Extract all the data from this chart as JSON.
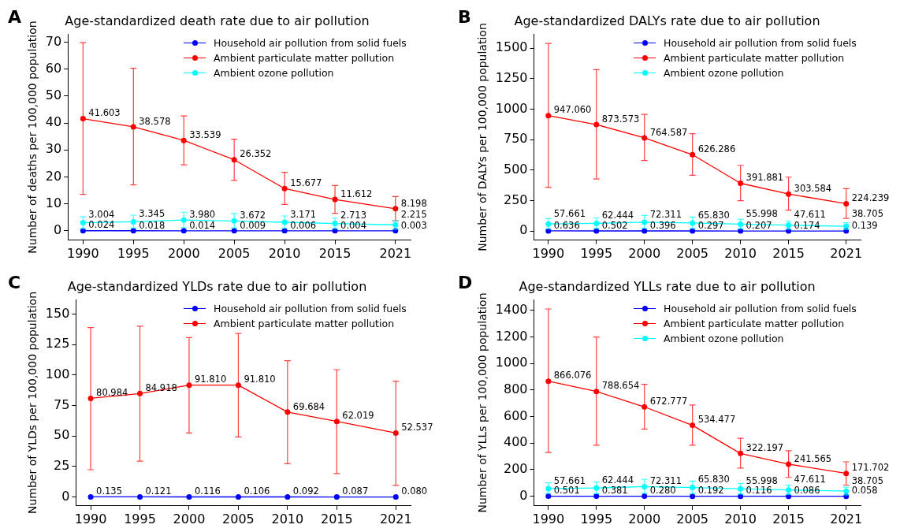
{
  "chart_data": [
    {
      "type": "line",
      "title": "Age-standardized death rate due to air pollution",
      "ylabel": "Number of deaths per 100,000 population",
      "annotations": [
        "A"
      ],
      "marker": "circle",
      "line_style": "solid",
      "grid": false,
      "legend": "top right",
      "xlim": [
        1988.5,
        2022.5
      ],
      "xticks": [
        1990,
        1995,
        2000,
        2005,
        2010,
        2015,
        2021
      ],
      "ylim": [
        -3.5,
        73
      ],
      "yticks": [
        0,
        10,
        20,
        30,
        40,
        50,
        60,
        70
      ],
      "series": [
        {
          "name": "Household air pollution from solid fuels",
          "color": "#0000ff",
          "x": [
            1990,
            1995,
            2000,
            2005,
            2010,
            2015,
            2021
          ],
          "values": [
            0.024,
            0.018,
            0.014,
            0.009,
            0.006,
            0.004,
            0.003
          ],
          "value_labels": [
            "0.024",
            "0.018",
            "0.014",
            "0.009",
            "0.006",
            "0.004",
            "0.003"
          ]
        },
        {
          "name": "Ambient particulate matter pollution",
          "color": "#ff0000",
          "x": [
            1990,
            1995,
            2000,
            2005,
            2010,
            2015,
            2021
          ],
          "values": [
            41.603,
            38.578,
            33.539,
            26.352,
            15.677,
            11.612,
            8.198
          ],
          "value_labels": [
            "41.603",
            "38.578",
            "33.539",
            "26.352",
            "15.677",
            "11.612",
            "8.198"
          ],
          "errors": [
            [
              13.5,
              69.8
            ],
            [
              17,
              60.3
            ],
            [
              24.5,
              42.6
            ],
            [
              18.7,
              34
            ],
            [
              9.8,
              21.7
            ],
            [
              6.5,
              16.8
            ],
            [
              3.7,
              12.7
            ]
          ]
        },
        {
          "name": "Ambient ozone pollution",
          "color": "#00ffff",
          "x": [
            1990,
            1995,
            2000,
            2005,
            2010,
            2015,
            2021
          ],
          "values": [
            3.004,
            3.345,
            3.98,
            3.672,
            3.171,
            2.713,
            2.215
          ],
          "value_labels": [
            "3.004",
            "3.345",
            "3.980",
            "3.672",
            "3.171",
            "2.713",
            "2.215"
          ],
          "errors": [
            [
              0.8,
              5.2
            ],
            [
              1,
              5.8
            ],
            [
              1.2,
              6.9
            ],
            [
              1.1,
              6.4
            ],
            [
              0.9,
              5.5
            ],
            [
              0.8,
              4.7
            ],
            [
              0.6,
              3.8
            ]
          ]
        }
      ]
    },
    {
      "type": "line",
      "title": "Age-standardized DALYs rate due to air pollution",
      "ylabel": "Number of DALYs per 100,000 population",
      "annotations": [
        "B"
      ],
      "marker": "circle",
      "line_style": "solid",
      "grid": false,
      "legend": "top right",
      "xlim": [
        1988.5,
        2022.5
      ],
      "xticks": [
        1990,
        1995,
        2000,
        2005,
        2010,
        2015,
        2021
      ],
      "ylim": [
        -76,
        1617
      ],
      "yticks": [
        0,
        250,
        500,
        750,
        1000,
        1250,
        1500
      ],
      "series": [
        {
          "name": "Household air pollution from solid fuels",
          "color": "#0000ff",
          "x": [
            1990,
            1995,
            2000,
            2005,
            2010,
            2015,
            2021
          ],
          "values": [
            0.636,
            0.502,
            0.396,
            0.297,
            0.207,
            0.174,
            0.139
          ],
          "value_labels": [
            "0.636",
            "0.502",
            "0.396",
            "0.297",
            "0.207",
            "0.174",
            "0.139"
          ]
        },
        {
          "name": "Ambient particulate matter pollution",
          "color": "#ff0000",
          "x": [
            1990,
            1995,
            2000,
            2005,
            2010,
            2015,
            2021
          ],
          "values": [
            947.06,
            873.573,
            764.587,
            626.286,
            391.881,
            303.584,
            224.239
          ],
          "value_labels": [
            "947.060",
            "873.573",
            "764.587",
            "626.286",
            "391.881",
            "303.584",
            "224.239"
          ],
          "errors": [
            [
              359,
              1540
            ],
            [
              427,
              1325
            ],
            [
              579,
              957
            ],
            [
              458,
              799
            ],
            [
              249,
              539
            ],
            [
              171,
              442
            ],
            [
              103,
              348
            ]
          ]
        },
        {
          "name": "Ambient ozone pollution",
          "color": "#00ffff",
          "x": [
            1990,
            1995,
            2000,
            2005,
            2010,
            2015,
            2021
          ],
          "values": [
            57.661,
            62.444,
            72.311,
            65.83,
            55.998,
            47.611,
            38.705
          ],
          "value_labels": [
            "57.661",
            "62.444",
            "72.311",
            "65.830",
            "55.998",
            "47.611",
            "38.705"
          ],
          "errors": [
            [
              18,
              101
            ],
            [
              20,
              107
            ],
            [
              22,
              127
            ],
            [
              20,
              115
            ],
            [
              17,
              97
            ],
            [
              14,
              83
            ],
            [
              11,
              68
            ]
          ]
        }
      ]
    },
    {
      "type": "line",
      "title": "Age-standardized YLDs rate due to air pollution",
      "ylabel": "Number of YLDs per 100,000 population",
      "annotations": [
        "C"
      ],
      "marker": "circle",
      "line_style": "solid",
      "grid": false,
      "legend": "top right",
      "xlim": [
        1988.5,
        2022.5
      ],
      "xticks": [
        1990,
        1995,
        2000,
        2005,
        2010,
        2015,
        2021
      ],
      "ylim": [
        -7.2,
        161.9
      ],
      "yticks": [
        0,
        25,
        50,
        75,
        100,
        125,
        150
      ],
      "series": [
        {
          "name": "Household air pollution from solid fuels",
          "color": "#0000ff",
          "x": [
            1990,
            1995,
            2000,
            2005,
            2010,
            2015,
            2021
          ],
          "values": [
            0.135,
            0.121,
            0.116,
            0.106,
            0.092,
            0.087,
            0.08
          ],
          "value_labels": [
            "0.135",
            "0.121",
            "0.116",
            "0.106",
            "0.092",
            "0.087",
            "0.080"
          ]
        },
        {
          "name": "Ambient particulate matter pollution",
          "color": "#ff0000",
          "x": [
            1990,
            1995,
            2000,
            2005,
            2010,
            2015,
            2021
          ],
          "values": [
            80.984,
            84.918,
            91.81,
            91.81,
            69.684,
            62.019,
            52.537
          ],
          "value_labels": [
            "80.984",
            "84.918",
            "91.810",
            "91.810",
            "69.684",
            "62.019",
            "52.537"
          ],
          "errors": [
            [
              22.4,
              139
            ],
            [
              29.5,
              140.1
            ],
            [
              52.6,
              130.7
            ],
            [
              49.3,
              134.1
            ],
            [
              27.3,
              111.9
            ],
            [
              19.3,
              104.5
            ],
            [
              9.6,
              95.1
            ]
          ]
        }
      ]
    },
    {
      "type": "line",
      "title": "Age-standardized YLLs rate due to air pollution",
      "ylabel": "Number of YLLs per 100,000 population",
      "annotations": [
        "D"
      ],
      "marker": "circle",
      "line_style": "solid",
      "grid": false,
      "legend": "top right",
      "xlim": [
        1988.5,
        2022.5
      ],
      "xticks": [
        1990,
        1995,
        2000,
        2005,
        2010,
        2015,
        2021
      ],
      "ylim": [
        -72,
        1480
      ],
      "yticks": [
        0,
        200,
        400,
        600,
        800,
        1000,
        1200,
        1400
      ],
      "series": [
        {
          "name": "Household air pollution from solid fuels",
          "color": "#0000ff",
          "x": [
            1990,
            1995,
            2000,
            2005,
            2010,
            2015,
            2021
          ],
          "values": [
            0.501,
            0.381,
            0.28,
            0.192,
            0.116,
            0.086,
            0.058
          ],
          "value_labels": [
            "0.501",
            "0.381",
            "0.280",
            "0.192",
            "0.116",
            "0.086",
            "0.058"
          ]
        },
        {
          "name": "Ambient particulate matter pollution",
          "color": "#ff0000",
          "x": [
            1990,
            1995,
            2000,
            2005,
            2010,
            2015,
            2021
          ],
          "values": [
            866.076,
            788.654,
            672.777,
            534.477,
            322.197,
            241.565,
            171.702
          ],
          "value_labels": [
            "866.076",
            "788.654",
            "672.777",
            "534.477",
            "322.197",
            "241.565",
            "171.702"
          ],
          "errors": [
            [
              329,
              1410
            ],
            [
              384,
              1199
            ],
            [
              506,
              843
            ],
            [
              384,
              687
            ],
            [
              212,
              436
            ],
            [
              142,
              343
            ],
            [
              84,
              259
            ]
          ]
        },
        {
          "name": "Ambient ozone pollution",
          "color": "#00ffff",
          "x": [
            1990,
            1995,
            2000,
            2005,
            2010,
            2015,
            2021
          ],
          "values": [
            57.661,
            62.444,
            72.311,
            65.83,
            55.998,
            47.611,
            38.705
          ],
          "value_labels": [
            "57.661",
            "62.444",
            "72.311",
            "65.830",
            "55.998",
            "47.611",
            "38.705"
          ],
          "errors": [
            [
              21,
              101
            ],
            [
              20,
              107
            ],
            [
              22,
              127
            ],
            [
              20,
              115
            ],
            [
              17,
              97
            ],
            [
              14,
              83
            ],
            [
              11,
              68
            ]
          ]
        }
      ]
    }
  ]
}
